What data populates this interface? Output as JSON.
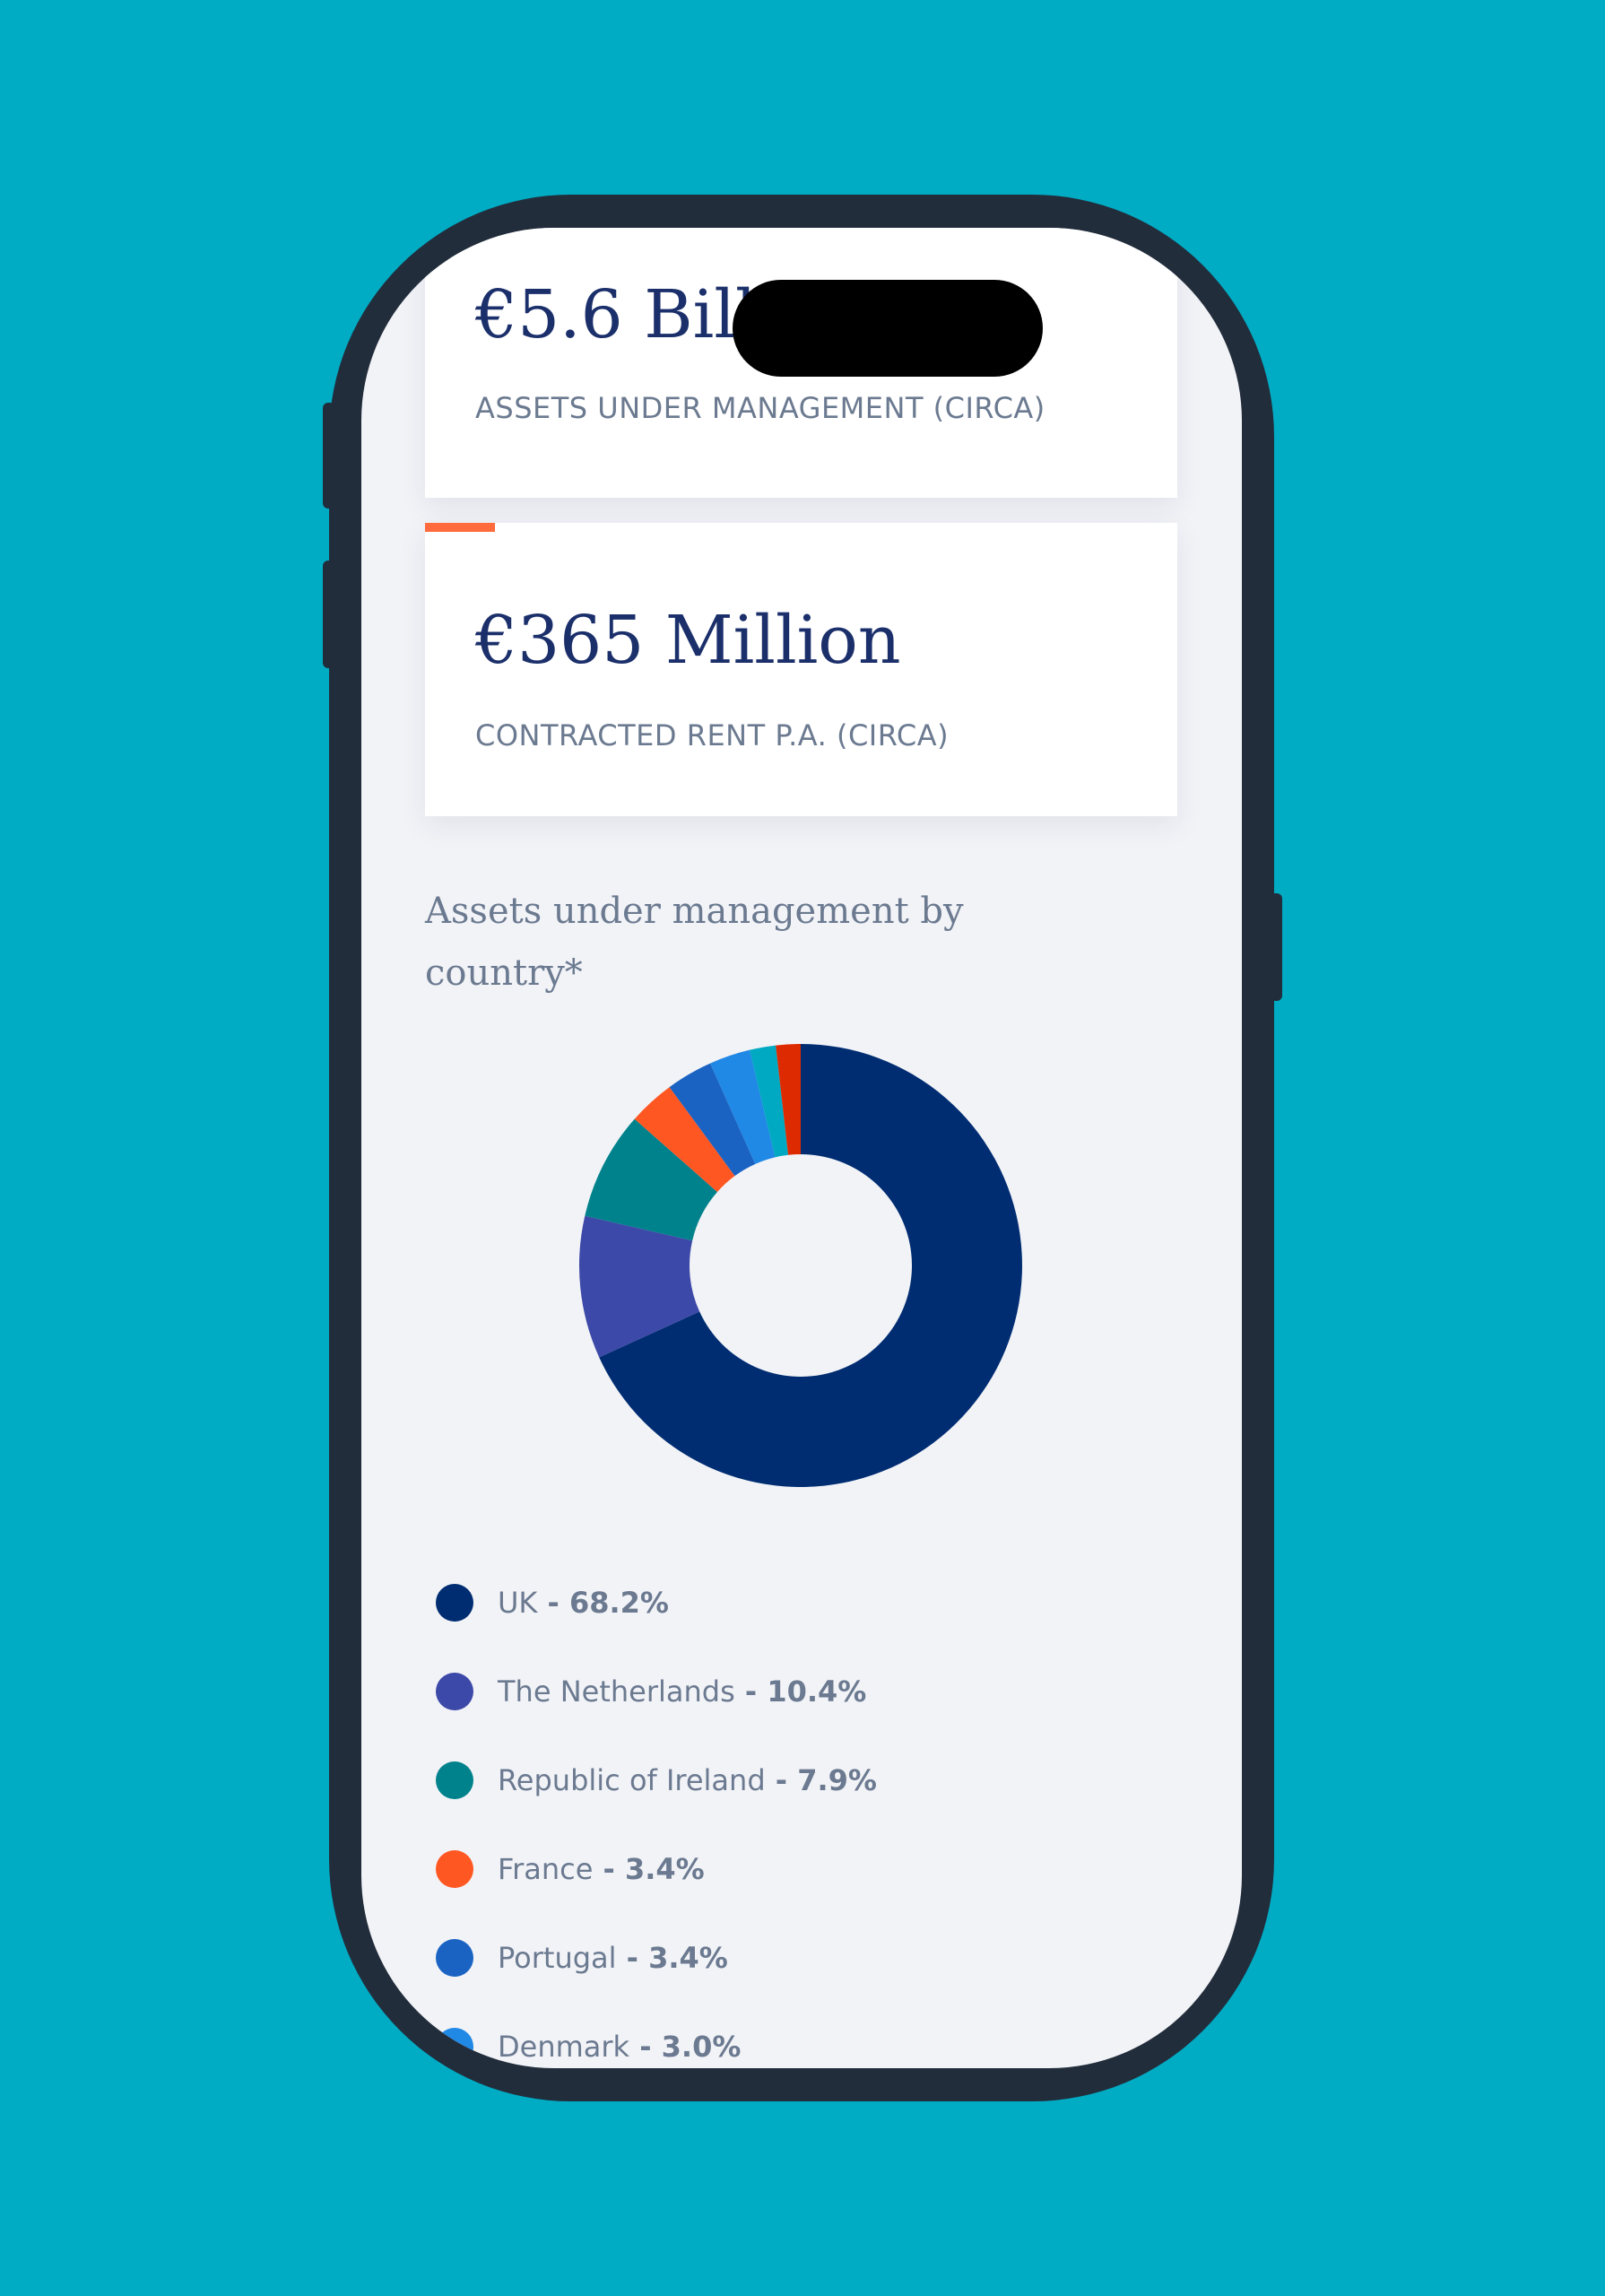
{
  "cards": [
    {
      "value": "€5.6 Billion",
      "label": "ASSETS UNDER MANAGEMENT (CIRCA)"
    },
    {
      "value": "€365 Million",
      "label": "CONTRACTED RENT P.A. (CIRCA)",
      "accent": "#FF6B3D"
    }
  ],
  "chart_title": "Assets under management by country*",
  "chart_data": {
    "type": "pie",
    "donut": true,
    "title": "Assets under management by country*",
    "slices": [
      {
        "name": "UK",
        "value": 68.2,
        "label": "68.2%",
        "color": "#002D72"
      },
      {
        "name": "The Netherlands",
        "value": 10.4,
        "label": "10.4%",
        "color": "#3D49A8"
      },
      {
        "name": "Republic of Ireland",
        "value": 7.9,
        "label": "7.9%",
        "color": "#00828C"
      },
      {
        "name": "France",
        "value": 3.4,
        "label": "3.4%",
        "color": "#FF5722"
      },
      {
        "name": "Portugal",
        "value": 3.4,
        "label": "3.4%",
        "color": "#1A63C2"
      },
      {
        "name": "Denmark",
        "value": 3.0,
        "label": "3.0%",
        "color": "#2088E5"
      },
      {
        "value": 1.9,
        "color": "#00A9C2"
      },
      {
        "value": 1.8,
        "color": "#DE2A00"
      }
    ],
    "legend_placement": "bottom"
  }
}
